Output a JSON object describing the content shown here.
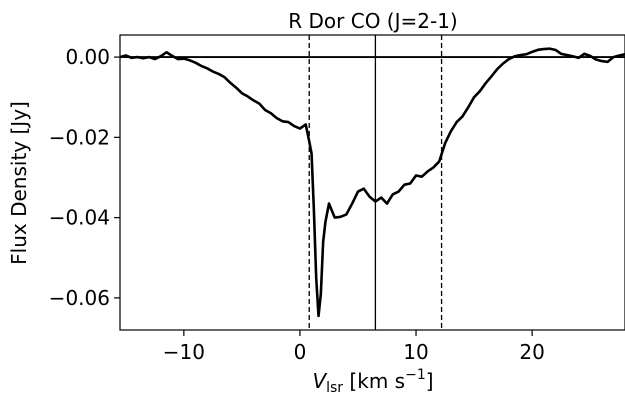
{
  "chart_data": {
    "type": "line",
    "title": "R Dor CO (J=2-1)",
    "xlabel": {
      "main": "V",
      "sub": "lsr",
      "unit_prefix": " [km s",
      "sup": "−1",
      "unit_suffix": "]"
    },
    "ylabel": "Flux Density [Jy]",
    "xlim": [
      -15.5,
      28
    ],
    "ylim": [
      -0.068,
      0.0055
    ],
    "x_ticks": [
      -10,
      0,
      10,
      20
    ],
    "x_tick_labels": [
      "−10",
      "0",
      "10",
      "20"
    ],
    "y_ticks": [
      0.0,
      -0.02,
      -0.04,
      -0.06
    ],
    "y_tick_labels": [
      "0.00",
      "−0.02",
      "−0.04",
      "−0.06"
    ],
    "grid": false,
    "reference_lines": {
      "horizontal_zero": 0.0,
      "systemic_velocity": 6.5,
      "dashed_limits": [
        0.8,
        12.2
      ]
    },
    "series": [
      {
        "color": "#000000",
        "x": [
          -15.5,
          -15.0,
          -14.5,
          -14.0,
          -13.5,
          -13.0,
          -12.5,
          -12.0,
          -11.5,
          -11.0,
          -10.5,
          -10.0,
          -9.5,
          -9.0,
          -8.5,
          -8.0,
          -7.5,
          -7.0,
          -6.5,
          -6.0,
          -5.5,
          -5.0,
          -4.5,
          -4.0,
          -3.5,
          -3.0,
          -2.5,
          -2.0,
          -1.5,
          -1.0,
          -0.5,
          0.0,
          0.5,
          0.8,
          1.0,
          1.2,
          1.4,
          1.6,
          1.8,
          2.0,
          2.2,
          2.5,
          3.0,
          3.5,
          4.0,
          4.5,
          5.0,
          5.5,
          6.0,
          6.5,
          7.0,
          7.5,
          8.0,
          8.5,
          9.0,
          9.5,
          10.0,
          10.5,
          11.0,
          11.5,
          12.0,
          12.5,
          13.0,
          13.5,
          14.0,
          14.5,
          15.0,
          15.5,
          16.0,
          16.5,
          17.0,
          17.5,
          18.0,
          18.5,
          19.0,
          19.5,
          20.0,
          20.5,
          21.0,
          21.5,
          22.0,
          22.5,
          23.0,
          23.5,
          24.0,
          24.5,
          25.0,
          25.5,
          26.0,
          26.5,
          27.0,
          27.5,
          28.0
        ],
        "y": [
          0.0,
          0.0004,
          -0.0002,
          0.0,
          -0.0003,
          0.0,
          -0.0005,
          0.0002,
          0.0012,
          0.0003,
          -0.0005,
          -0.0004,
          -0.0008,
          -0.0014,
          -0.0022,
          -0.0028,
          -0.0036,
          -0.0042,
          -0.005,
          -0.0064,
          -0.0076,
          -0.009,
          -0.0098,
          -0.0108,
          -0.0116,
          -0.0132,
          -0.014,
          -0.0152,
          -0.016,
          -0.0162,
          -0.0172,
          -0.0178,
          -0.0168,
          -0.021,
          -0.024,
          -0.038,
          -0.055,
          -0.0645,
          -0.059,
          -0.046,
          -0.041,
          -0.0365,
          -0.04,
          -0.0398,
          -0.0392,
          -0.0365,
          -0.0335,
          -0.0328,
          -0.0348,
          -0.036,
          -0.035,
          -0.0365,
          -0.0342,
          -0.0335,
          -0.0318,
          -0.0315,
          -0.0295,
          -0.0298,
          -0.0285,
          -0.0275,
          -0.026,
          -0.0215,
          -0.0185,
          -0.0162,
          -0.0148,
          -0.0125,
          -0.01,
          -0.0085,
          -0.0065,
          -0.0048,
          -0.003,
          -0.0016,
          -0.0005,
          0.0002,
          0.0005,
          0.0007,
          0.0013,
          0.0018,
          0.002,
          0.0021,
          0.0018,
          0.0008,
          0.0005,
          0.0002,
          -0.0002,
          0.0008,
          0.0003,
          -0.0006,
          -0.001,
          -0.0012,
          0.0,
          0.0004,
          0.0007
        ]
      }
    ]
  }
}
